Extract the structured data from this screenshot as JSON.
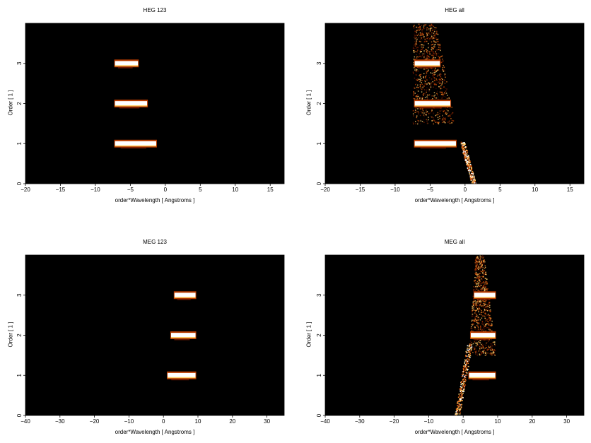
{
  "colors": {
    "background": "#000000",
    "colormap": [
      "#000000",
      "#3a0a00",
      "#7a1c00",
      "#b83c00",
      "#e8761c",
      "#ffd06a",
      "#ffffff"
    ]
  },
  "chart_data": [
    {
      "type": "heatmap",
      "title": "HEG 123",
      "xlabel": "order*Wavelength [ Angstroms ]",
      "ylabel": "Order [ 1 ]",
      "xlim": [
        -20,
        17
      ],
      "ylim": [
        0,
        4
      ],
      "xticks": [
        -20,
        -15,
        -10,
        -5,
        0,
        5,
        10,
        15
      ],
      "xticklabels": [
        "−20",
        "−15",
        "−10",
        "−5",
        "0",
        "5",
        "10",
        "15"
      ],
      "yticks": [
        0,
        1,
        2,
        3
      ],
      "yticklabels": [
        "0",
        "1",
        "2",
        "3"
      ],
      "bands": [
        {
          "order": 1,
          "x_start": -7.3,
          "x_end": -1.2,
          "intensity": "high"
        },
        {
          "order": 2,
          "x_start": -7.3,
          "x_end": -2.5,
          "intensity": "high"
        },
        {
          "order": 3,
          "x_start": -7.3,
          "x_end": -3.8,
          "intensity": "high"
        }
      ]
    },
    {
      "type": "heatmap",
      "title": "HEG all",
      "xlabel": "order*Wavelength [ Angstroms ]",
      "ylabel": "Order [ 1 ]",
      "xlim": [
        -20,
        17
      ],
      "ylim": [
        0,
        4
      ],
      "xticks": [
        -20,
        -15,
        -10,
        -5,
        0,
        5,
        10,
        15
      ],
      "xticklabels": [
        "−20",
        "−15",
        "−10",
        "−5",
        "0",
        "5",
        "10",
        "15"
      ],
      "yticks": [
        0,
        1,
        2,
        3
      ],
      "yticklabels": [
        "0",
        "1",
        "2",
        "3"
      ],
      "bands": [
        {
          "order": 1,
          "x_start": -7.3,
          "x_end": -1.2,
          "intensity": "high"
        },
        {
          "order": 2,
          "x_start": -7.3,
          "x_end": -2.0,
          "intensity": "high"
        },
        {
          "order": 3,
          "x_start": -7.3,
          "x_end": -3.5,
          "intensity": "high"
        }
      ],
      "background_region": {
        "x_start": -7.5,
        "x_end": -1.5,
        "y_start": 1.5,
        "y_end": 4.0
      },
      "zeroth_order_streak": {
        "x_start": -1.5,
        "x_end": 1.2,
        "y_start": 0.0,
        "y_end": 1.05
      }
    },
    {
      "type": "heatmap",
      "title": "MEG 123",
      "xlabel": "order*Wavelength [ Angstroms ]",
      "ylabel": "Order [ 1 ]",
      "xlim": [
        -40,
        35
      ],
      "ylim": [
        0,
        4
      ],
      "xticks": [
        -40,
        -30,
        -20,
        -10,
        0,
        10,
        20,
        30
      ],
      "xticklabels": [
        "−40",
        "−30",
        "−20",
        "−10",
        "0",
        "10",
        "20",
        "30"
      ],
      "yticks": [
        0,
        1,
        2,
        3
      ],
      "yticklabels": [
        "0",
        "1",
        "2",
        "3"
      ],
      "bands": [
        {
          "order": 1,
          "x_start": 1.0,
          "x_end": 9.5,
          "intensity": "high"
        },
        {
          "order": 2,
          "x_start": 2.0,
          "x_end": 9.5,
          "intensity": "high"
        },
        {
          "order": 3,
          "x_start": 3.0,
          "x_end": 9.5,
          "intensity": "high"
        }
      ]
    },
    {
      "type": "heatmap",
      "title": "MEG all",
      "xlabel": "order*Wavelength [ Angstroms ]",
      "ylabel": "Order [ 1 ]",
      "xlim": [
        -40,
        35
      ],
      "ylim": [
        0,
        4
      ],
      "xticks": [
        -40,
        -30,
        -20,
        -10,
        0,
        10,
        20,
        30
      ],
      "xticklabels": [
        "−40",
        "−30",
        "−20",
        "−10",
        "0",
        "10",
        "20",
        "30"
      ],
      "yticks": [
        0,
        1,
        2,
        3
      ],
      "yticklabels": [
        "0",
        "1",
        "2",
        "3"
      ],
      "bands": [
        {
          "order": 1,
          "x_start": 1.5,
          "x_end": 9.5,
          "intensity": "high"
        },
        {
          "order": 2,
          "x_start": 2.0,
          "x_end": 9.5,
          "intensity": "high"
        },
        {
          "order": 3,
          "x_start": 3.0,
          "x_end": 9.5,
          "intensity": "high"
        }
      ],
      "background_region": {
        "x_start": 1.5,
        "x_end": 9.5,
        "y_start": 1.5,
        "y_end": 4.0
      },
      "zeroth_order_streak": {
        "x_start": -3.0,
        "x_end": 3.0,
        "y_start": 0.0,
        "y_end": 1.8
      }
    }
  ]
}
